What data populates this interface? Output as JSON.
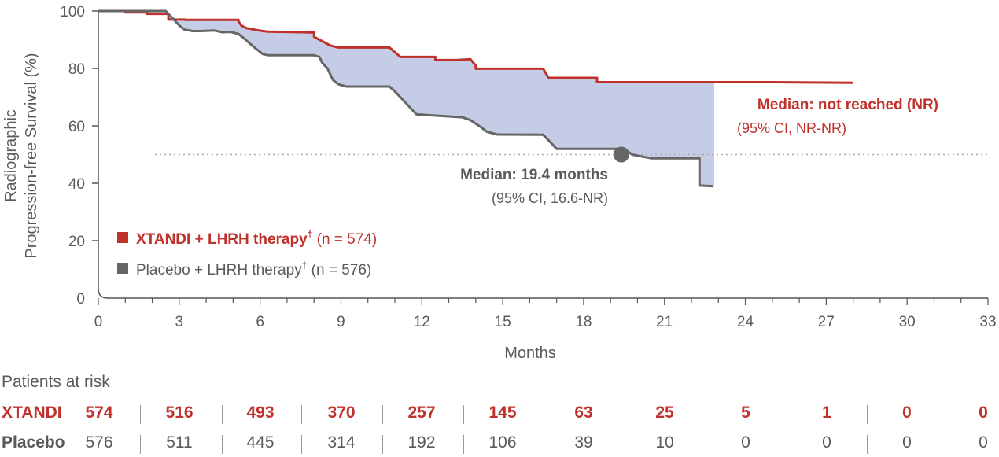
{
  "chart_data": {
    "type": "line",
    "ylabel_line1": "Radiographic",
    "ylabel_line2": "Progression-free Survival (%)",
    "xlabel": "Months",
    "xlim": [
      0,
      33
    ],
    "ylim": [
      0,
      100
    ],
    "x_ticks": [
      "0",
      "3",
      "6",
      "9",
      "12",
      "15",
      "18",
      "21",
      "24",
      "27",
      "30",
      "33"
    ],
    "y_ticks": [
      "0",
      "20",
      "40",
      "60",
      "80",
      "100"
    ],
    "median_reference_y": 50,
    "series": [
      {
        "name": "XTANDI + LHRH therapy",
        "color": "#c0312b",
        "x": [
          0,
          1.0,
          1.0,
          1.8,
          1.8,
          2.6,
          2.6,
          3.2,
          3.2,
          5.2,
          5.2,
          5.3,
          5.5,
          5.8,
          6.1,
          6.3,
          7.6,
          8.0,
          8.0,
          8.6,
          8.9,
          10.8,
          11.2,
          11.2,
          12.5,
          12.5,
          13.3,
          13.8,
          14.0,
          14.0,
          16.3,
          16.5,
          16.7,
          18.5,
          18.5,
          25,
          28
        ],
        "y": [
          100,
          100,
          99.5,
          99.5,
          99,
          99,
          97,
          97,
          96.9,
          96.9,
          96.4,
          95,
          94,
          93.5,
          93,
          92.8,
          92.6,
          92.5,
          91,
          88,
          87.3,
          87.3,
          84,
          84,
          84,
          82.9,
          82.9,
          83.2,
          81,
          79.9,
          79.9,
          79.9,
          76.7,
          76.7,
          75.2,
          75.2,
          75
        ]
      },
      {
        "name": "Placebo + LHRH therapy",
        "color": "#666666",
        "x": [
          0,
          2.5,
          2.6,
          2.8,
          3.0,
          3.2,
          3.5,
          3.8,
          4.3,
          4.6,
          4.9,
          5.2,
          5.4,
          5.7,
          5.9,
          6.1,
          6.3,
          6.7,
          8.0,
          8.2,
          8.3,
          8.5,
          8.6,
          8.7,
          8.9,
          9.2,
          10.8,
          11.0,
          11.2,
          11.5,
          11.8,
          13.5,
          13.8,
          14.2,
          14.4,
          14.8,
          16.5,
          16.8,
          17.0,
          17.3,
          19.3,
          19.5,
          19.8,
          20.5,
          22.3,
          22.3,
          22.8
        ],
        "y": [
          100,
          100,
          99,
          97,
          95,
          93.5,
          93,
          93,
          93.2,
          92.6,
          92.7,
          92,
          90.5,
          88,
          86.5,
          85,
          84.6,
          84.6,
          84.6,
          84,
          82,
          80,
          78,
          76,
          74.5,
          73.7,
          73.7,
          72,
          70,
          67,
          64,
          63,
          62,
          59.5,
          58,
          57,
          56.9,
          54,
          52,
          52,
          52,
          52,
          50,
          48.7,
          48.7,
          39.2,
          39
        ]
      }
    ],
    "annotations": {
      "xtandi_median": "Median: not reached (NR)",
      "xtandi_ci": "(95% CI, NR-NR)",
      "placebo_median": "Median: 19.4 months",
      "placebo_median_x": 19.4,
      "placebo_ci": "(95% CI, 16.6-NR)"
    },
    "legend": {
      "position": "bottom-left",
      "xtandi_name": "XTANDI + LHRH therapy",
      "xtandi_sup": "†",
      "xtandi_n": " (n = 574)",
      "placebo_name": "Placebo + LHRH therapy",
      "placebo_sup": "†",
      "placebo_n": " (n = 576)"
    },
    "grid": false
  },
  "risk_table": {
    "title": "Patients at risk",
    "xtandi_label": "XTANDI",
    "placebo_label": "Placebo",
    "xtandi_values": [
      "574",
      "516",
      "493",
      "370",
      "257",
      "145",
      "63",
      "25",
      "5",
      "1",
      "0",
      "0"
    ],
    "placebo_values": [
      "576",
      "511",
      "445",
      "314",
      "192",
      "106",
      "39",
      "10",
      "0",
      "0",
      "0",
      "0"
    ]
  }
}
